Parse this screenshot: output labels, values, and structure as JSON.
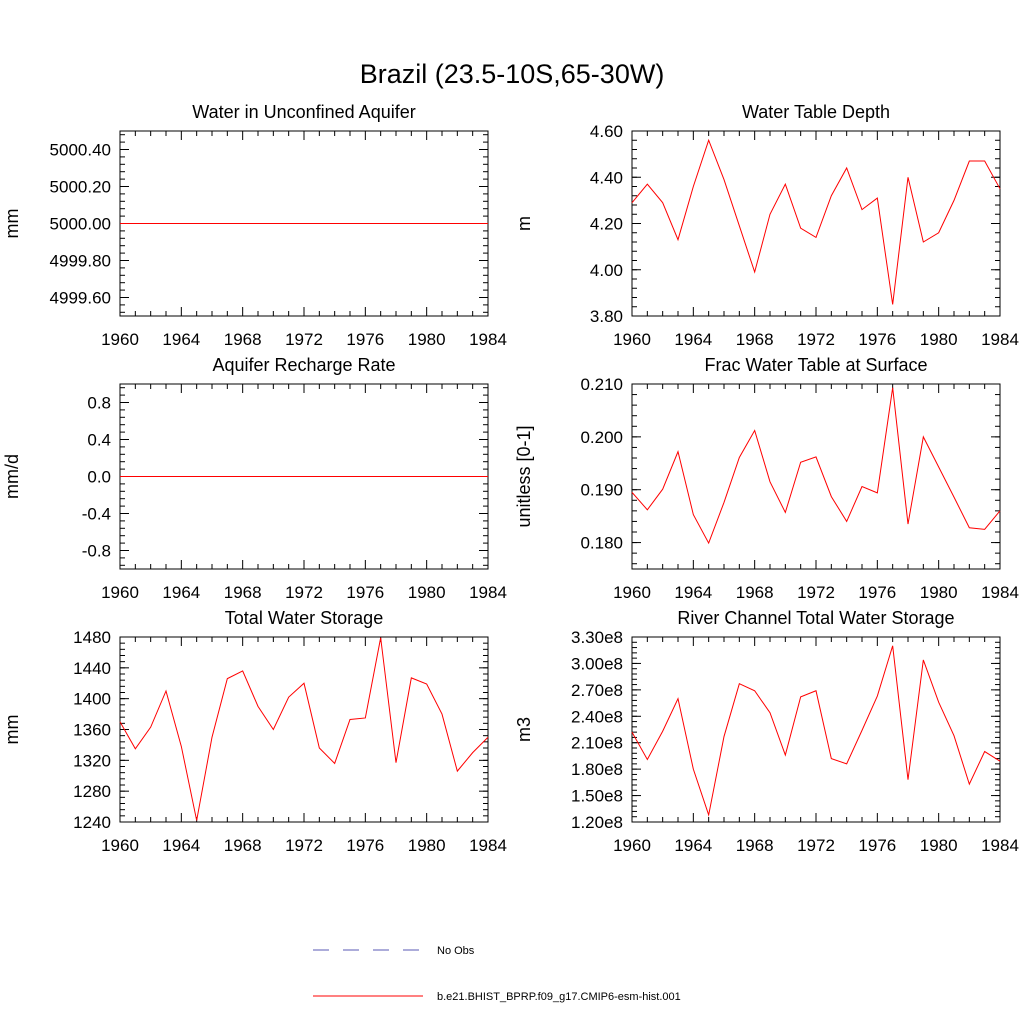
{
  "title": "Brazil (23.5-10S,65-30W)",
  "colors": {
    "model": "#ff0000",
    "obs": "#5a5ab4"
  },
  "legend": {
    "entries": [
      {
        "label": "No Obs",
        "style": "dashed",
        "color": "#5a5ab4"
      },
      {
        "label": "b.e21.BHIST_BPRP.f09_g17.CMIP6-esm-hist.001",
        "style": "solid",
        "color": "#ff0000"
      }
    ]
  },
  "chart_data": [
    {
      "type": "line",
      "title": "Water in Unconfined Aquifer",
      "xlabel": "",
      "ylabel": "mm",
      "xlim": [
        1960,
        1984
      ],
      "ylim": [
        4999.5,
        5000.5
      ],
      "xticks": [
        1960,
        1964,
        1968,
        1972,
        1976,
        1980,
        1984
      ],
      "xtick_labels": [
        "1960",
        "1964",
        "1968",
        "1972",
        "1976",
        "1980",
        "1984"
      ],
      "yticks": [
        4999.6,
        4999.8,
        5000.0,
        5000.2,
        5000.4
      ],
      "ytick_labels": [
        "4999.60",
        "4999.80",
        "5000.00",
        "5000.20",
        "5000.40"
      ],
      "series": [
        {
          "x": [
            1960,
            1984
          ],
          "values": [
            5000.0,
            5000.0
          ]
        }
      ]
    },
    {
      "type": "line",
      "title": "Water Table Depth",
      "xlabel": "",
      "ylabel": "m",
      "xlim": [
        1960,
        1984
      ],
      "ylim": [
        3.8,
        4.6
      ],
      "xticks": [
        1960,
        1964,
        1968,
        1972,
        1976,
        1980,
        1984
      ],
      "xtick_labels": [
        "1960",
        "1964",
        "1968",
        "1972",
        "1976",
        "1980",
        "1984"
      ],
      "yticks": [
        3.8,
        4.0,
        4.2,
        4.4,
        4.6
      ],
      "ytick_labels": [
        "3.80",
        "4.00",
        "4.20",
        "4.40",
        "4.60"
      ],
      "series": [
        {
          "x": [
            1960,
            1961,
            1962,
            1963,
            1964,
            1965,
            1966,
            1967,
            1968,
            1969,
            1970,
            1971,
            1972,
            1973,
            1974,
            1975,
            1976,
            1977,
            1978,
            1979,
            1980,
            1981,
            1982,
            1983,
            1984
          ],
          "values": [
            4.29,
            4.37,
            4.29,
            4.13,
            4.36,
            4.56,
            4.39,
            4.19,
            3.99,
            4.24,
            4.37,
            4.18,
            4.14,
            4.32,
            4.44,
            4.26,
            4.31,
            3.85,
            4.4,
            4.12,
            4.16,
            4.3,
            4.47,
            4.47,
            4.35
          ]
        }
      ]
    },
    {
      "type": "line",
      "title": "Aquifer Recharge Rate",
      "xlabel": "",
      "ylabel": "mm/d",
      "xlim": [
        1960,
        1984
      ],
      "ylim": [
        -1.0,
        1.0
      ],
      "xticks": [
        1960,
        1964,
        1968,
        1972,
        1976,
        1980,
        1984
      ],
      "xtick_labels": [
        "1960",
        "1964",
        "1968",
        "1972",
        "1976",
        "1980",
        "1984"
      ],
      "yticks": [
        -0.8,
        -0.4,
        0.0,
        0.4,
        0.8
      ],
      "ytick_labels": [
        "-0.8",
        "-0.4",
        "0.0",
        "0.4",
        "0.8"
      ],
      "series": [
        {
          "x": [
            1960,
            1984
          ],
          "values": [
            0.0,
            0.0
          ]
        }
      ]
    },
    {
      "type": "line",
      "title": "Frac Water Table at Surface",
      "xlabel": "",
      "ylabel": "unitless [0-1]",
      "xlim": [
        1960,
        1984
      ],
      "ylim": [
        0.175,
        0.21
      ],
      "xticks": [
        1960,
        1964,
        1968,
        1972,
        1976,
        1980,
        1984
      ],
      "xtick_labels": [
        "1960",
        "1964",
        "1968",
        "1972",
        "1976",
        "1980",
        "1984"
      ],
      "yticks": [
        0.18,
        0.19,
        0.2,
        0.21
      ],
      "ytick_labels": [
        "0.180",
        "0.190",
        "0.200",
        "0.210"
      ],
      "series": [
        {
          "x": [
            1960,
            1961,
            1962,
            1963,
            1964,
            1965,
            1966,
            1967,
            1968,
            1969,
            1970,
            1971,
            1972,
            1973,
            1974,
            1975,
            1976,
            1977,
            1978,
            1979,
            1980,
            1981,
            1982,
            1983,
            1984
          ],
          "values": [
            0.1895,
            0.1862,
            0.1901,
            0.1972,
            0.1853,
            0.1799,
            0.1876,
            0.1961,
            0.2012,
            0.1915,
            0.1857,
            0.1952,
            0.1962,
            0.1887,
            0.184,
            0.1906,
            0.1894,
            0.2093,
            0.1835,
            0.2,
            0.1943,
            0.1886,
            0.1828,
            0.1825,
            0.186
          ]
        }
      ]
    },
    {
      "type": "line",
      "title": "Total Water Storage",
      "xlabel": "",
      "ylabel": "mm",
      "xlim": [
        1960,
        1984
      ],
      "ylim": [
        1240,
        1480
      ],
      "xticks": [
        1960,
        1964,
        1968,
        1972,
        1976,
        1980,
        1984
      ],
      "xtick_labels": [
        "1960",
        "1964",
        "1968",
        "1972",
        "1976",
        "1980",
        "1984"
      ],
      "yticks": [
        1240,
        1280,
        1320,
        1360,
        1400,
        1440,
        1480
      ],
      "ytick_labels": [
        "1240",
        "1280",
        "1320",
        "1360",
        "1400",
        "1440",
        "1480"
      ],
      "series": [
        {
          "x": [
            1960,
            1961,
            1962,
            1963,
            1964,
            1965,
            1966,
            1967,
            1968,
            1969,
            1970,
            1971,
            1972,
            1973,
            1974,
            1975,
            1976,
            1977,
            1978,
            1979,
            1980,
            1981,
            1982,
            1983,
            1984
          ],
          "values": [
            1370,
            1335,
            1363,
            1410,
            1338,
            1242,
            1350,
            1426,
            1436,
            1390,
            1360,
            1402,
            1420,
            1336,
            1316,
            1373,
            1375,
            1479,
            1317,
            1427,
            1419,
            1380,
            1306,
            1330,
            1350
          ]
        }
      ]
    },
    {
      "type": "line",
      "title": "River Channel Total Water Storage",
      "xlabel": "",
      "ylabel": "m3",
      "xlim": [
        1960,
        1984
      ],
      "ylim": [
        120000000,
        330000000
      ],
      "xticks": [
        1960,
        1964,
        1968,
        1972,
        1976,
        1980,
        1984
      ],
      "xtick_labels": [
        "1960",
        "1964",
        "1968",
        "1972",
        "1976",
        "1980",
        "1984"
      ],
      "yticks": [
        120000000,
        150000000,
        180000000,
        210000000,
        240000000,
        270000000,
        300000000,
        330000000
      ],
      "ytick_labels": [
        "1.20e8",
        "1.50e8",
        "1.80e8",
        "2.10e8",
        "2.40e8",
        "2.70e8",
        "3.00e8",
        "3.30e8"
      ],
      "series": [
        {
          "x": [
            1960,
            1961,
            1962,
            1963,
            1964,
            1965,
            1966,
            1967,
            1968,
            1969,
            1970,
            1971,
            1972,
            1973,
            1974,
            1975,
            1976,
            1977,
            1978,
            1979,
            1980,
            1981,
            1982,
            1983,
            1984
          ],
          "values": [
            222000000,
            191000000,
            223000000,
            260000000,
            180000000,
            128000000,
            217000000,
            277000000,
            269000000,
            244000000,
            196000000,
            262000000,
            269000000,
            192000000,
            186000000,
            224000000,
            263000000,
            320000000,
            168000000,
            304000000,
            256000000,
            218000000,
            163000000,
            200000000,
            189000000
          ]
        }
      ]
    }
  ]
}
